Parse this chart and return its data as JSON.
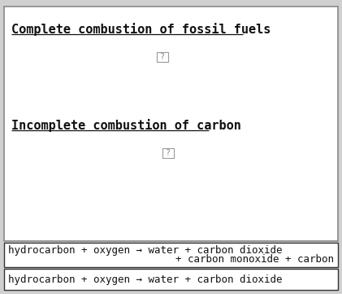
{
  "title1": "Complete combustion of fossil fuels",
  "title2": "Incomplete combustion of carbon",
  "placeholder_char": "?",
  "box1_line1": "hydrocarbon + oxygen → water + carbon dioxide",
  "box1_line2": "+ carbon monoxide + carbon",
  "box2_line1": "hydrocarbon + oxygen → water + carbon dioxide",
  "bg_color": "#d0d0d0",
  "outer_box_bg": "#ffffff",
  "outer_box_border": "#888888",
  "inner_box_border": "#333333",
  "text_color": "#111111",
  "title_fontsize": 11,
  "body_fontsize": 9,
  "fig_width": 4.21,
  "fig_height": 3.61,
  "dpi": 100
}
